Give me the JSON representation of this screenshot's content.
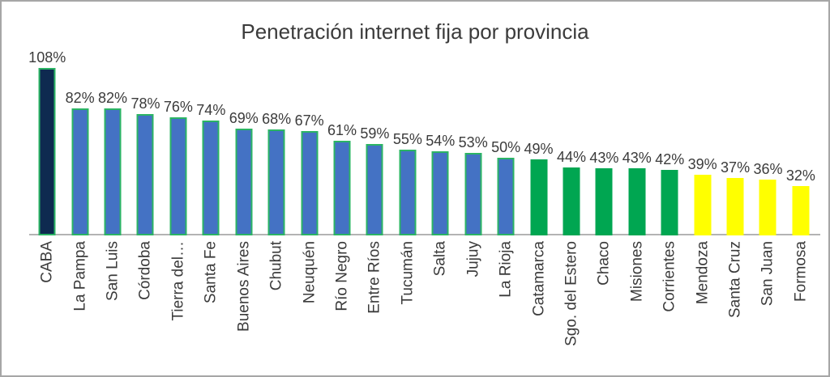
{
  "chart_data": {
    "type": "bar",
    "title": "Penetración internet fija por provincia",
    "categories": [
      "CABA",
      "La Pampa",
      "San Luis",
      "Córdoba",
      "Tierra del…",
      "Santa Fe",
      "Buenos Aires",
      "Chubut",
      "Neuquén",
      "Río Negro",
      "Entre Ríos",
      "Tucumán",
      "Salta",
      "Jujuy",
      "La Rioja",
      "Catamarca",
      "Sgo. del Estero",
      "Chaco",
      "Misiones",
      "Corrientes",
      "Mendoza",
      "Santa Cruz",
      "San Juan",
      "Formosa"
    ],
    "values": [
      108,
      82,
      82,
      78,
      76,
      74,
      69,
      68,
      67,
      61,
      59,
      55,
      54,
      53,
      50,
      49,
      44,
      43,
      43,
      42,
      39,
      37,
      36,
      32
    ],
    "value_label_suffix": "%",
    "bar_groups": [
      "navy",
      "blue",
      "blue",
      "blue",
      "blue",
      "blue",
      "blue",
      "blue",
      "blue",
      "blue",
      "blue",
      "blue",
      "blue",
      "blue",
      "blue",
      "green",
      "green",
      "green",
      "green",
      "green",
      "yellow",
      "yellow",
      "yellow",
      "yellow"
    ],
    "colors": {
      "navy": "#0e2a50",
      "blue": "#4472c4",
      "green": "#00a651",
      "yellow": "#ffff00",
      "bar_border": "#2bb464",
      "axis_line": "#b3b3b3",
      "text": "#3b3b3b"
    },
    "xlabel": "",
    "ylabel": "",
    "ylim": [
      0,
      115
    ],
    "grid": false,
    "legend": false
  }
}
